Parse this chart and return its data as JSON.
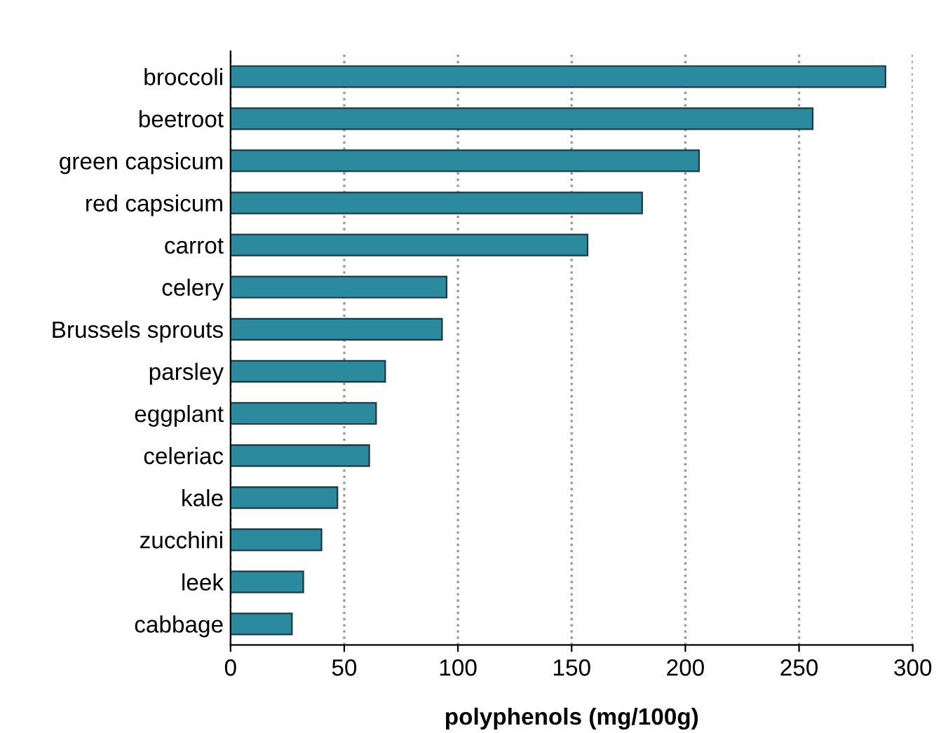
{
  "chart_data": {
    "type": "bar",
    "orientation": "horizontal",
    "xlabel": "polyphenols (mg/100g)",
    "categories": [
      "broccoli",
      "beetroot",
      "green capsicum",
      "red capsicum",
      "carrot",
      "celery",
      "Brussels sprouts",
      "parsley",
      "eggplant",
      "celeriac",
      "kale",
      "zucchini",
      "leek",
      "cabbage"
    ],
    "values": [
      288,
      256,
      206,
      181,
      157,
      95,
      93,
      68,
      64,
      61,
      47,
      40,
      32,
      27
    ],
    "color": "#2b8a9e",
    "xlim": [
      0,
      300
    ],
    "xticks": [
      0,
      50,
      100,
      150,
      200,
      250,
      300
    ],
    "grid": "x"
  }
}
